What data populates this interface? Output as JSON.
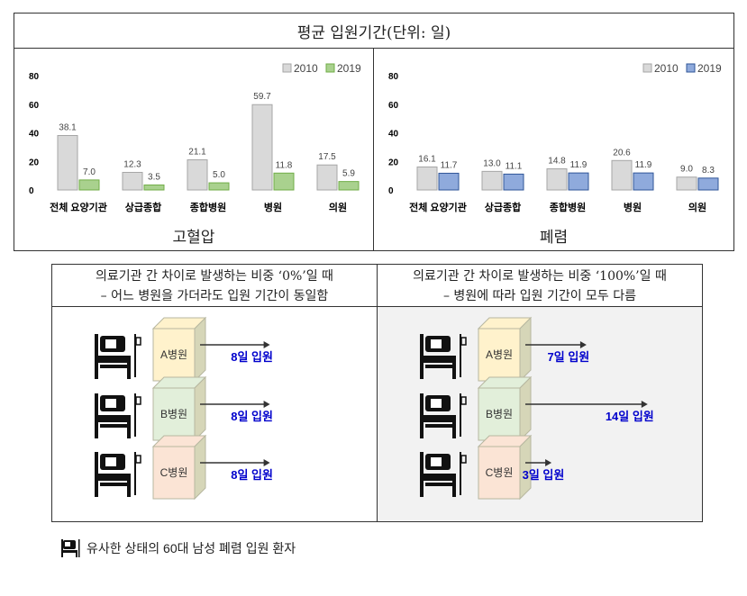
{
  "title": "평균 입원기간(단위: 일)",
  "chart_data": [
    {
      "type": "bar",
      "panel_label": "고혈압",
      "categories": [
        "전체 요양기관",
        "상급종합",
        "종합병원",
        "병원",
        "의원"
      ],
      "series": [
        {
          "name": "2010",
          "values": [
            38.1,
            12.3,
            21.1,
            59.7,
            17.5
          ],
          "value_labels": [
            "38.1",
            "12.3",
            "21.1",
            "59.7",
            "17.5"
          ],
          "color": "#d9d9d9",
          "stroke": "#a6a6a6"
        },
        {
          "name": "2019",
          "values": [
            7.0,
            3.5,
            5.0,
            11.8,
            5.9
          ],
          "value_labels": [
            "7.0",
            "3.5",
            "5.0",
            "11.8",
            "5.9"
          ],
          "color": "#a9d18e",
          "stroke": "#70ad47"
        }
      ],
      "yticks": [
        "0",
        "20",
        "40",
        "60",
        "80"
      ],
      "ylim": [
        0,
        80
      ],
      "legend": "top-right",
      "grid": false
    },
    {
      "type": "bar",
      "panel_label": "폐렴",
      "categories": [
        "전체 요양기관",
        "상급종합",
        "종합병원",
        "병원",
        "의원"
      ],
      "series": [
        {
          "name": "2010",
          "values": [
            16.1,
            13.0,
            14.8,
            20.6,
            9.0
          ],
          "value_labels": [
            "16.1",
            "13.0",
            "14.8",
            "20.6",
            "9.0"
          ],
          "color": "#d9d9d9",
          "stroke": "#a6a6a6"
        },
        {
          "name": "2019",
          "values": [
            11.7,
            11.1,
            11.9,
            11.9,
            8.3
          ],
          "value_labels": [
            "11.7",
            "11.1",
            "11.9",
            "11.9",
            "8.3"
          ],
          "color": "#8faadc",
          "stroke": "#2f5597"
        }
      ],
      "yticks": [
        "0",
        "20",
        "40",
        "60",
        "80"
      ],
      "ylim": [
        0,
        80
      ],
      "legend": "top-right",
      "grid": false
    }
  ],
  "illustration": {
    "left": {
      "heading_line1": "의료기관 간 차이로 발생하는 비중 ‘0%’일 때",
      "heading_line2": "– 어느 병원을 가더라도 입원 기간이 동일함",
      "rows": [
        {
          "hospital": "A병원",
          "stay": "8일 입원",
          "days": 8,
          "box_color": "#fff2cc"
        },
        {
          "hospital": "B병원",
          "stay": "8일 입원",
          "days": 8,
          "box_color": "#e2efda"
        },
        {
          "hospital": "C병원",
          "stay": "8일 입원",
          "days": 8,
          "box_color": "#fbe4d5"
        }
      ]
    },
    "right": {
      "heading_line1": "의료기관 간 차이로 발생하는 비중 ‘100%’일 때",
      "heading_line2": "– 병원에 따라 입원 기간이 모두 다름",
      "rows": [
        {
          "hospital": "A병원",
          "stay": "7일 입원",
          "days": 7,
          "box_color": "#fff2cc"
        },
        {
          "hospital": "B병원",
          "stay": "14일 입원",
          "days": 14,
          "box_color": "#e2efda"
        },
        {
          "hospital": "C병원",
          "stay": "3일 입원",
          "days": 3,
          "box_color": "#fbe4d5"
        }
      ]
    },
    "stay_text_color": "#0000cc"
  },
  "footnote": "유사한 상태의 60대 남성 폐렴 입원 환자",
  "icon": "patient-bed-icon"
}
